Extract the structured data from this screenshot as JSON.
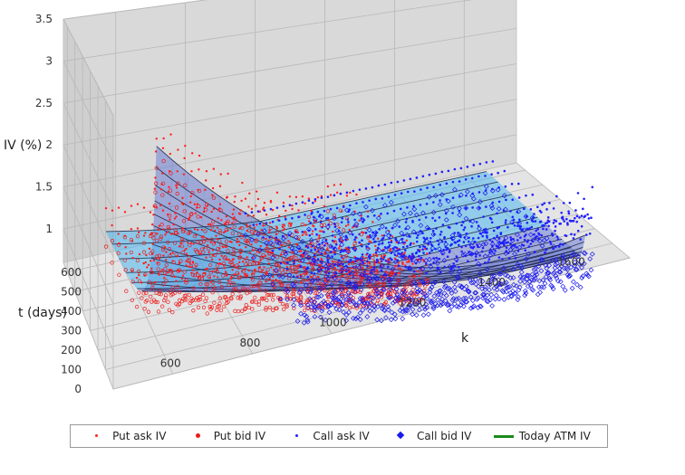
{
  "chart_data": {
    "type": "scatter",
    "subtype": "3d-surface-scatter",
    "xlabel": "k",
    "ylabel": "t (days)",
    "zlabel": "IV (%)",
    "xlim": [
      450,
      1750
    ],
    "ylim": [
      0,
      650
    ],
    "zlim": [
      0.6,
      3.5
    ],
    "x_ticks": [
      "600",
      "800",
      "1000",
      "1200",
      "1400",
      "1600"
    ],
    "y_ticks": [
      "0",
      "100",
      "200",
      "300",
      "400",
      "500",
      "600"
    ],
    "z_ticks": [
      "1",
      "1.5",
      "2",
      "2.5",
      "3",
      "3.5"
    ],
    "grid": true,
    "legend_position": "bottom",
    "legend": [
      {
        "name": "Put ask IV",
        "symbol": "dot-small",
        "color": "#ff2020"
      },
      {
        "name": "Put bid IV",
        "symbol": "dot-med",
        "color": "#ee1a1a"
      },
      {
        "name": "Call ask IV",
        "symbol": "dot-small",
        "color": "#2020ff"
      },
      {
        "name": "Call bid IV",
        "symbol": "diamond",
        "color": "#1a1aee"
      },
      {
        "name": "Today ATM IV",
        "symbol": "line",
        "color": "#1a8a1a"
      }
    ],
    "model": {
      "atm_strike": 1200,
      "t_values": [
        5,
        12,
        19,
        26,
        33,
        40,
        54,
        68,
        89,
        117,
        145,
        180,
        236,
        292,
        362,
        446,
        530,
        600
      ],
      "k_range": [
        560,
        1660
      ],
      "surface_color": "#6c7fd4",
      "surface_front_color": "#4fb8ee"
    }
  }
}
